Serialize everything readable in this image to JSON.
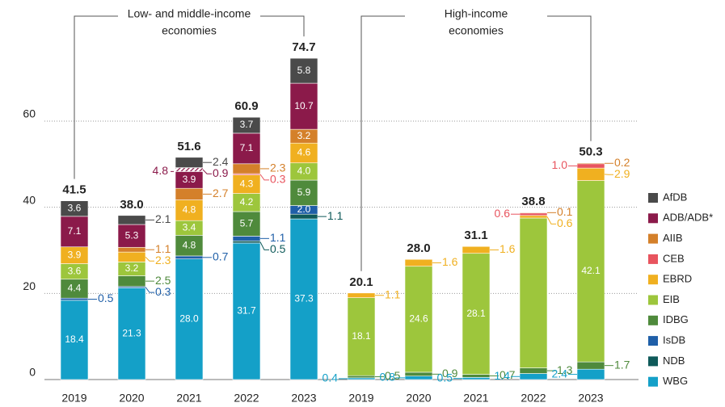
{
  "chart_data": {
    "type": "stacked_bar",
    "categories": [
      "2019",
      "2020",
      "2021",
      "2022",
      "2023",
      "2019",
      "2020",
      "2021",
      "2022",
      "2023"
    ],
    "groups": [
      {
        "label_lines": [
          "Low- and middle-income",
          "economies"
        ],
        "from": 0,
        "to": 4
      },
      {
        "label_lines": [
          "High-income",
          "economies"
        ],
        "from": 5,
        "to": 9
      }
    ],
    "ylim": [
      0,
      80
    ],
    "yticks": [
      0,
      20,
      40,
      60
    ],
    "grid": true,
    "totals": [
      41.5,
      38.0,
      51.6,
      60.9,
      74.7,
      20.1,
      28.0,
      31.1,
      38.8,
      50.3
    ],
    "totals_labels": [
      "41.5",
      "38.0",
      "51.6",
      "60.9",
      "74.7",
      "20.1",
      "28.0",
      "31.1",
      "38.8",
      "50.3"
    ],
    "annotations": [
      "4.8"
    ],
    "series": [
      {
        "name": "WBG",
        "color": "#14a0c8",
        "values": [
          18.4,
          21.3,
          28.0,
          31.7,
          37.3,
          0.4,
          0.8,
          0.5,
          1.4,
          2.4
        ],
        "value_labels": [
          "18.4",
          "21.3",
          "28.0",
          "31.7",
          "37.3",
          "0.4",
          "0.8",
          "0.5",
          "1.4",
          "2.4"
        ]
      },
      {
        "name": "NDB",
        "color": "#0f5a5a",
        "values": [
          null,
          null,
          null,
          0.5,
          1.1,
          null,
          null,
          null,
          null,
          null
        ],
        "value_labels": [
          null,
          null,
          null,
          "0.5",
          "1.1",
          null,
          null,
          null,
          null,
          null
        ]
      },
      {
        "name": "IsDB",
        "color": "#1f5fa8",
        "values": [
          0.5,
          0.3,
          0.7,
          1.1,
          2.0,
          null,
          null,
          null,
          null,
          null
        ],
        "value_labels": [
          "0.5",
          "0.3",
          "0.7",
          "1.1",
          "2.0",
          null,
          null,
          null,
          null,
          null
        ]
      },
      {
        "name": "IDBG",
        "color": "#4f8a3c",
        "values": [
          4.4,
          2.5,
          4.8,
          5.7,
          5.9,
          0.5,
          0.9,
          0.7,
          1.3,
          1.7
        ],
        "value_labels": [
          "4.4",
          "2.5",
          "4.8",
          "5.7",
          "5.9",
          "0.5",
          "0.9",
          "0.7",
          "1.3",
          "1.7"
        ]
      },
      {
        "name": "EIB",
        "color": "#9dc63c",
        "values": [
          3.6,
          3.2,
          3.4,
          4.2,
          4.0,
          18.1,
          24.6,
          28.1,
          34.8,
          42.1
        ],
        "value_labels": [
          "3.6",
          "3.2",
          "3.4",
          "4.2",
          "4.0",
          "18.1",
          "24.6",
          "28.1",
          null,
          "42.1"
        ]
      },
      {
        "name": "EBRD",
        "color": "#f0b020",
        "values": [
          3.9,
          2.3,
          4.8,
          4.3,
          4.6,
          1.1,
          1.6,
          1.6,
          0.6,
          2.9
        ],
        "value_labels": [
          "3.9",
          "2.3",
          "4.8",
          "4.3",
          "4.6",
          "1.1",
          "1.6",
          "1.6",
          "0.6",
          "2.9"
        ]
      },
      {
        "name": "CEB",
        "color": "#e8545e",
        "values": [
          null,
          null,
          null,
          0.3,
          null,
          null,
          null,
          null,
          0.6,
          1.0
        ],
        "value_labels": [
          null,
          null,
          null,
          "0.3",
          null,
          null,
          null,
          null,
          "0.6",
          "1.0"
        ]
      },
      {
        "name": "AIIB",
        "color": "#d4802a",
        "values": [
          null,
          1.1,
          2.7,
          2.3,
          3.2,
          null,
          null,
          null,
          0.1,
          0.2
        ],
        "value_labels": [
          null,
          "1.1",
          "2.7",
          "2.3",
          "3.2",
          null,
          null,
          null,
          "0.1",
          "0.2"
        ]
      },
      {
        "name": "ADB/ADB*",
        "color": "#8b1a4a",
        "values": [
          7.1,
          5.3,
          3.9,
          7.1,
          10.7,
          null,
          null,
          null,
          null,
          null
        ],
        "value_labels": [
          "7.1",
          "5.3",
          "3.9",
          "7.1",
          "10.7",
          null,
          null,
          null,
          null,
          null
        ]
      },
      {
        "name": "ADB*",
        "color": "#8b1a4a",
        "hatched": true,
        "legend": false,
        "values": [
          null,
          null,
          0.9,
          null,
          null,
          null,
          null,
          null,
          null,
          null
        ],
        "value_labels": [
          null,
          null,
          "0.9",
          null,
          null,
          null,
          null,
          null,
          null,
          null
        ]
      },
      {
        "name": "AfDB",
        "color": "#4a4a4a",
        "values": [
          3.6,
          2.1,
          2.4,
          3.7,
          5.8,
          null,
          null,
          null,
          null,
          null
        ],
        "value_labels": [
          "3.6",
          "2.1",
          "2.4",
          "3.7",
          "5.8",
          null,
          null,
          null,
          null,
          null
        ]
      }
    ]
  }
}
